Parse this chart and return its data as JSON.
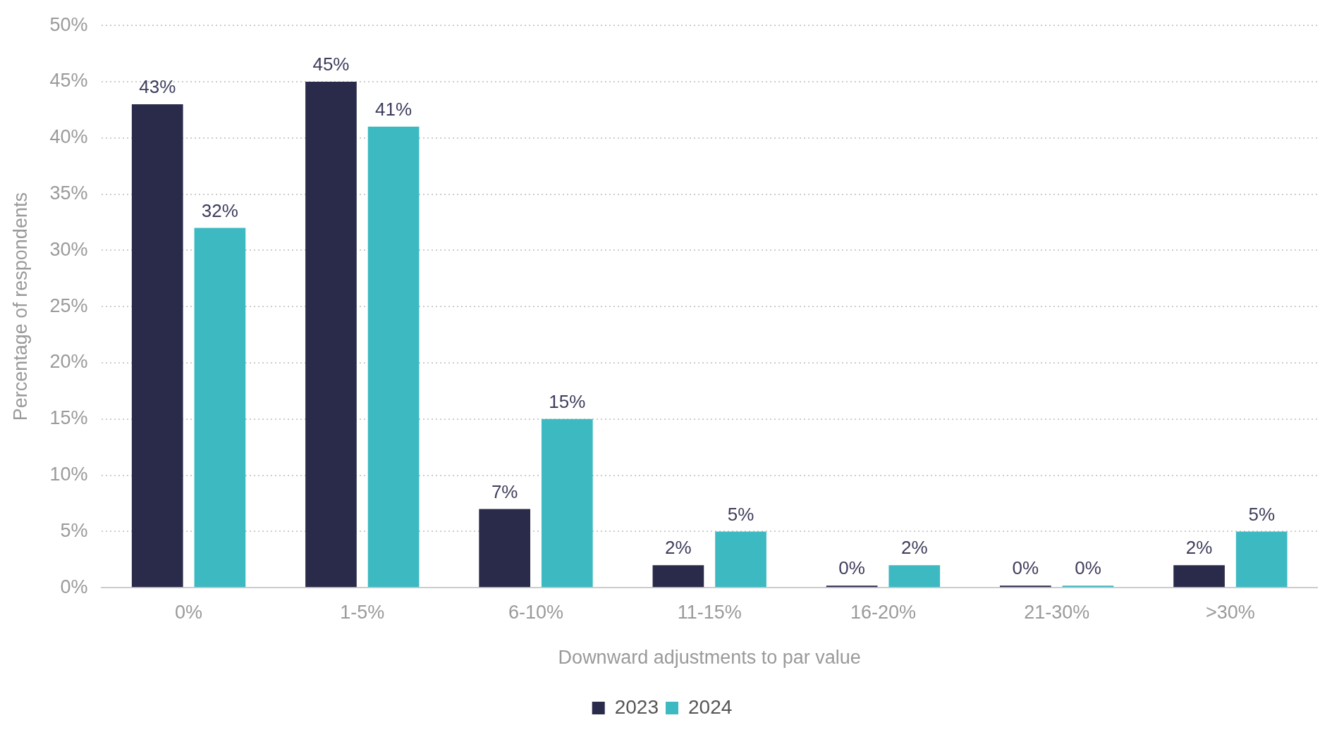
{
  "chart_data": {
    "type": "bar",
    "xlabel": "Downward adjustments to par value",
    "ylabel": "Percentage of respondents",
    "categories": [
      "0%",
      "1-5%",
      "6-10%",
      "11-15%",
      "16-20%",
      "21-30%",
      ">30%"
    ],
    "series": [
      {
        "name": "2023",
        "color": "#2a2a4b",
        "values": [
          43,
          45,
          7,
          2,
          0,
          0,
          2
        ],
        "value_labels": [
          "43%",
          "45%",
          "7%",
          "2%",
          "0%",
          "0%",
          "2%"
        ]
      },
      {
        "name": "2024",
        "color": "#3db9c1",
        "values": [
          32,
          41,
          15,
          5,
          2,
          0,
          5
        ],
        "value_labels": [
          "32%",
          "41%",
          "15%",
          "5%",
          "2%",
          "0%",
          "5%"
        ]
      }
    ],
    "ylim": [
      0,
      50
    ],
    "yticks": [
      {
        "value": 0,
        "label": "0%"
      },
      {
        "value": 5,
        "label": "5%"
      },
      {
        "value": 10,
        "label": "10%"
      },
      {
        "value": 15,
        "label": "15%"
      },
      {
        "value": 20,
        "label": "20%"
      },
      {
        "value": 25,
        "label": "25%"
      },
      {
        "value": 30,
        "label": "30%"
      },
      {
        "value": 35,
        "label": "35%"
      },
      {
        "value": 40,
        "label": "40%"
      },
      {
        "value": 45,
        "label": "45%"
      },
      {
        "value": 50,
        "label": "50%"
      }
    ],
    "grid": "y",
    "legend": "bottom"
  }
}
